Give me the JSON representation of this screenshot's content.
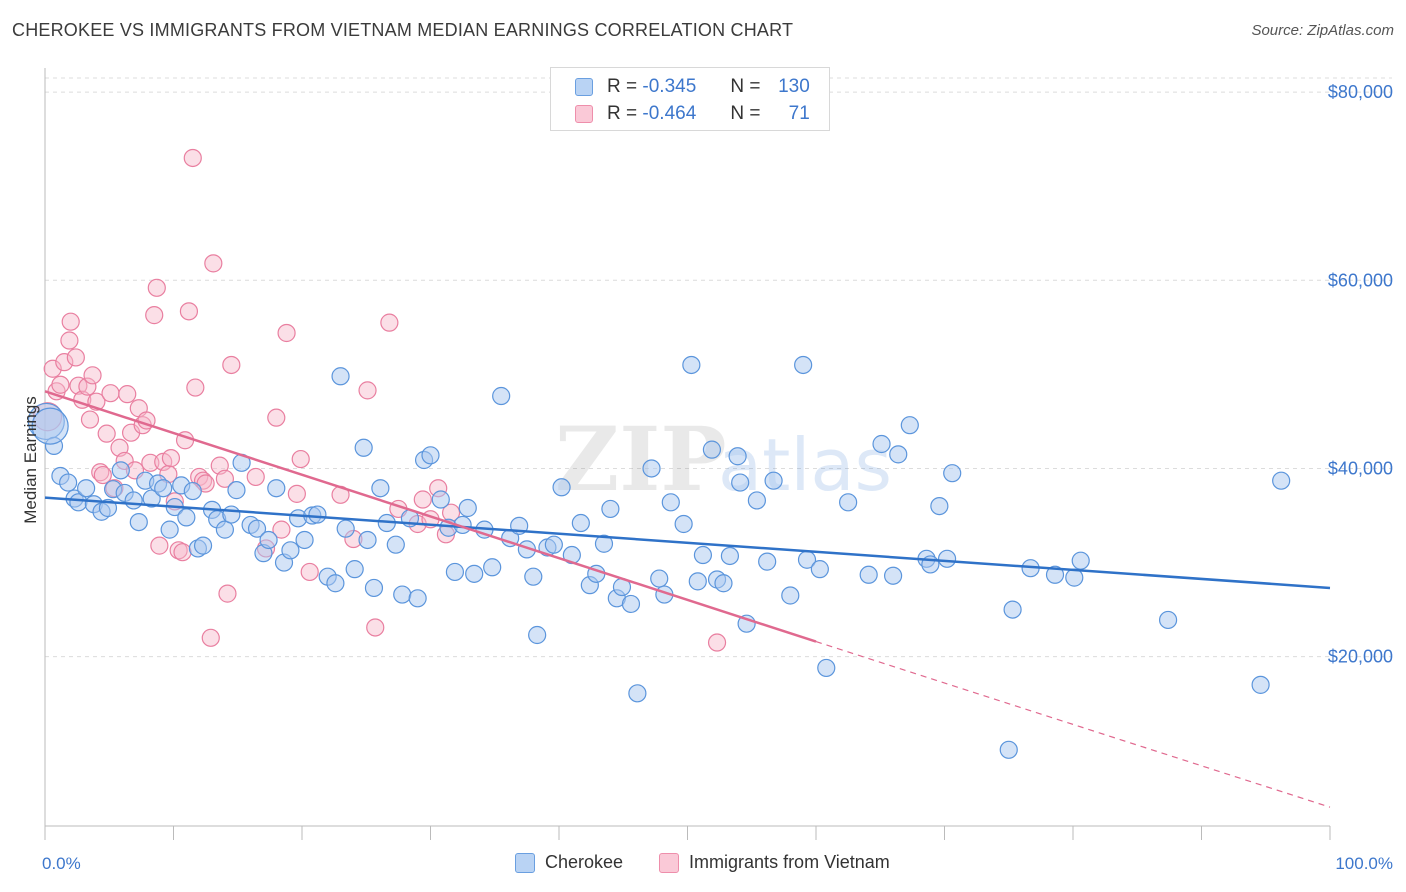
{
  "header": {
    "title": "CHEROKEE VS IMMIGRANTS FROM VIETNAM MEDIAN EARNINGS CORRELATION CHART",
    "source": "Source: ZipAtlas.com"
  },
  "legend": {
    "rows": [
      {
        "r_label": "R =",
        "r_value": "-0.345",
        "n_label": "N =",
        "n_value": "130"
      },
      {
        "r_label": "R =",
        "r_value": "-0.464",
        "n_label": "N =",
        "n_value": "71"
      }
    ]
  },
  "watermark": {
    "zip": "ZIP",
    "atlas": "atlas"
  },
  "colors": {
    "blue_fill": "#a9c8f0",
    "blue_stroke": "#5b95dc",
    "blue_line": "#2f72c8",
    "pink_fill": "#f6b8ca",
    "pink_stroke": "#e97fa0",
    "pink_line": "#e0698f",
    "grid": "#dcdcdc",
    "tick_text": "#3d77cc"
  },
  "chart_data": {
    "type": "scatter",
    "title": "CHEROKEE VS IMMIGRANTS FROM VIETNAM MEDIAN EARNINGS CORRELATION CHART",
    "xlabel": "",
    "ylabel": "Median Earnings",
    "xlim": [
      0,
      100
    ],
    "ylim": [
      2000,
      81500
    ],
    "y_ticks": [
      20000,
      40000,
      60000,
      80000
    ],
    "y_tick_labels": [
      "$20,000",
      "$40,000",
      "$60,000",
      "$80,000"
    ],
    "x_tick_labels": [
      "0.0%",
      "100.0%"
    ],
    "grid": "horizontal dashed",
    "legend_position": "top-center",
    "series": [
      {
        "name": "Cherokee",
        "color": "#a9c8f0",
        "R": -0.345,
        "N": 130,
        "trend": {
          "x": [
            0,
            100
          ],
          "y": [
            36900,
            27300
          ]
        },
        "points": [
          [
            0.1,
            45000
          ],
          [
            0.7,
            42400
          ],
          [
            1.2,
            39200
          ],
          [
            1.8,
            38500
          ],
          [
            2.3,
            36800
          ],
          [
            2.6,
            36400
          ],
          [
            3.2,
            37900
          ],
          [
            3.8,
            36200
          ],
          [
            4.4,
            35400
          ],
          [
            4.9,
            35800
          ],
          [
            5.3,
            37800
          ],
          [
            5.9,
            39800
          ],
          [
            6.2,
            37400
          ],
          [
            6.9,
            36600
          ],
          [
            7.3,
            34300
          ],
          [
            7.8,
            38700
          ],
          [
            8.3,
            36800
          ],
          [
            8.8,
            38400
          ],
          [
            9.2,
            37900
          ],
          [
            9.7,
            33500
          ],
          [
            10.1,
            35900
          ],
          [
            10.6,
            38200
          ],
          [
            11.0,
            34800
          ],
          [
            11.5,
            37600
          ],
          [
            11.9,
            31500
          ],
          [
            12.3,
            31800
          ],
          [
            13.0,
            35600
          ],
          [
            13.4,
            34600
          ],
          [
            14.0,
            33500
          ],
          [
            14.5,
            35100
          ],
          [
            14.9,
            37700
          ],
          [
            15.3,
            40600
          ],
          [
            16.0,
            34000
          ],
          [
            16.5,
            33600
          ],
          [
            17.0,
            31000
          ],
          [
            17.4,
            32400
          ],
          [
            18.0,
            37900
          ],
          [
            18.6,
            30000
          ],
          [
            19.1,
            31300
          ],
          [
            19.7,
            34700
          ],
          [
            20.2,
            32400
          ],
          [
            20.8,
            35000
          ],
          [
            21.2,
            35100
          ],
          [
            22.0,
            28500
          ],
          [
            22.6,
            27800
          ],
          [
            23.0,
            49800
          ],
          [
            23.4,
            33600
          ],
          [
            24.1,
            29300
          ],
          [
            24.8,
            42200
          ],
          [
            25.1,
            32400
          ],
          [
            25.6,
            27300
          ],
          [
            26.1,
            37900
          ],
          [
            26.6,
            34200
          ],
          [
            27.3,
            31900
          ],
          [
            27.8,
            26600
          ],
          [
            28.4,
            34700
          ],
          [
            29.0,
            26200
          ],
          [
            29.5,
            40900
          ],
          [
            30.0,
            41400
          ],
          [
            30.8,
            36700
          ],
          [
            31.4,
            33700
          ],
          [
            31.9,
            29000
          ],
          [
            32.5,
            34000
          ],
          [
            32.9,
            35800
          ],
          [
            33.4,
            28800
          ],
          [
            34.2,
            33500
          ],
          [
            34.8,
            29500
          ],
          [
            35.5,
            47700
          ],
          [
            36.2,
            32600
          ],
          [
            36.9,
            33900
          ],
          [
            37.5,
            31400
          ],
          [
            38.0,
            28500
          ],
          [
            38.3,
            22300
          ],
          [
            39.1,
            31600
          ],
          [
            39.6,
            31900
          ],
          [
            40.2,
            38000
          ],
          [
            41.0,
            30800
          ],
          [
            41.7,
            34200
          ],
          [
            42.4,
            27600
          ],
          [
            42.9,
            28800
          ],
          [
            43.5,
            32000
          ],
          [
            44.0,
            35700
          ],
          [
            44.5,
            26200
          ],
          [
            44.9,
            27400
          ],
          [
            45.6,
            25600
          ],
          [
            46.1,
            16100
          ],
          [
            47.2,
            40000
          ],
          [
            47.8,
            28300
          ],
          [
            48.2,
            26600
          ],
          [
            48.7,
            36400
          ],
          [
            49.7,
            34100
          ],
          [
            50.3,
            51000
          ],
          [
            50.8,
            28000
          ],
          [
            51.2,
            30800
          ],
          [
            51.9,
            42000
          ],
          [
            52.3,
            28200
          ],
          [
            52.8,
            27800
          ],
          [
            53.3,
            30700
          ],
          [
            53.9,
            41300
          ],
          [
            54.1,
            38500
          ],
          [
            54.6,
            23500
          ],
          [
            55.4,
            36600
          ],
          [
            56.2,
            30100
          ],
          [
            56.7,
            38700
          ],
          [
            58.0,
            26500
          ],
          [
            59.0,
            51000
          ],
          [
            59.3,
            30300
          ],
          [
            60.3,
            29300
          ],
          [
            60.8,
            18800
          ],
          [
            62.5,
            36400
          ],
          [
            64.1,
            28700
          ],
          [
            65.1,
            42600
          ],
          [
            66.0,
            28600
          ],
          [
            66.4,
            41500
          ],
          [
            67.3,
            44600
          ],
          [
            68.6,
            30400
          ],
          [
            68.9,
            29800
          ],
          [
            70.2,
            30400
          ],
          [
            69.6,
            36000
          ],
          [
            70.6,
            39500
          ],
          [
            75.0,
            10100
          ],
          [
            75.3,
            25000
          ],
          [
            76.7,
            29400
          ],
          [
            78.6,
            28700
          ],
          [
            80.1,
            28400
          ],
          [
            80.6,
            30200
          ],
          [
            87.4,
            23900
          ],
          [
            94.6,
            17000
          ],
          [
            96.2,
            38700
          ],
          [
            0.4,
            44500
          ]
        ]
      },
      {
        "name": "Immigrants from Vietnam",
        "color": "#f6b8ca",
        "R": -0.464,
        "N": 71,
        "trend": {
          "x": [
            0,
            60
          ],
          "y": [
            48200,
            21600
          ]
        },
        "trend_extension": {
          "x": [
            60,
            100
          ],
          "y": [
            21600,
            4000
          ]
        },
        "points": [
          [
            0.2,
            45500
          ],
          [
            0.6,
            50600
          ],
          [
            0.9,
            48200
          ],
          [
            1.2,
            48900
          ],
          [
            1.5,
            51300
          ],
          [
            1.9,
            53600
          ],
          [
            2.0,
            55600
          ],
          [
            2.4,
            51800
          ],
          [
            2.6,
            48800
          ],
          [
            2.9,
            47300
          ],
          [
            3.3,
            48700
          ],
          [
            3.5,
            45200
          ],
          [
            3.7,
            49900
          ],
          [
            4.0,
            47100
          ],
          [
            4.3,
            39600
          ],
          [
            4.5,
            39300
          ],
          [
            4.8,
            43700
          ],
          [
            5.1,
            48000
          ],
          [
            5.4,
            37900
          ],
          [
            5.8,
            42200
          ],
          [
            6.2,
            40800
          ],
          [
            6.4,
            47900
          ],
          [
            6.7,
            43800
          ],
          [
            7.0,
            39800
          ],
          [
            7.3,
            46400
          ],
          [
            7.6,
            44600
          ],
          [
            7.9,
            45100
          ],
          [
            8.2,
            40600
          ],
          [
            8.5,
            56300
          ],
          [
            8.7,
            59200
          ],
          [
            8.9,
            31800
          ],
          [
            9.2,
            40700
          ],
          [
            9.6,
            39400
          ],
          [
            9.8,
            41100
          ],
          [
            10.1,
            36500
          ],
          [
            10.4,
            31300
          ],
          [
            10.7,
            31100
          ],
          [
            10.9,
            43000
          ],
          [
            11.2,
            56700
          ],
          [
            11.5,
            73000
          ],
          [
            11.7,
            48600
          ],
          [
            12.0,
            39100
          ],
          [
            12.3,
            38700
          ],
          [
            12.5,
            38400
          ],
          [
            12.9,
            22000
          ],
          [
            13.1,
            61800
          ],
          [
            13.6,
            40300
          ],
          [
            14.0,
            38900
          ],
          [
            14.2,
            26700
          ],
          [
            14.5,
            51000
          ],
          [
            16.4,
            39100
          ],
          [
            17.2,
            31500
          ],
          [
            18.0,
            45400
          ],
          [
            18.4,
            33500
          ],
          [
            18.8,
            54400
          ],
          [
            19.6,
            37300
          ],
          [
            19.9,
            41000
          ],
          [
            20.6,
            29000
          ],
          [
            23.0,
            37200
          ],
          [
            24.0,
            32500
          ],
          [
            25.1,
            48300
          ],
          [
            25.7,
            23100
          ],
          [
            26.8,
            55500
          ],
          [
            27.5,
            35700
          ],
          [
            29.0,
            34100
          ],
          [
            29.4,
            36700
          ],
          [
            30.0,
            34600
          ],
          [
            30.6,
            37900
          ],
          [
            31.2,
            33000
          ],
          [
            31.6,
            35300
          ],
          [
            52.3,
            21500
          ]
        ]
      }
    ]
  },
  "bottom_legend": {
    "items": [
      {
        "label": "Cherokee"
      },
      {
        "label": "Immigrants from Vietnam"
      }
    ]
  }
}
